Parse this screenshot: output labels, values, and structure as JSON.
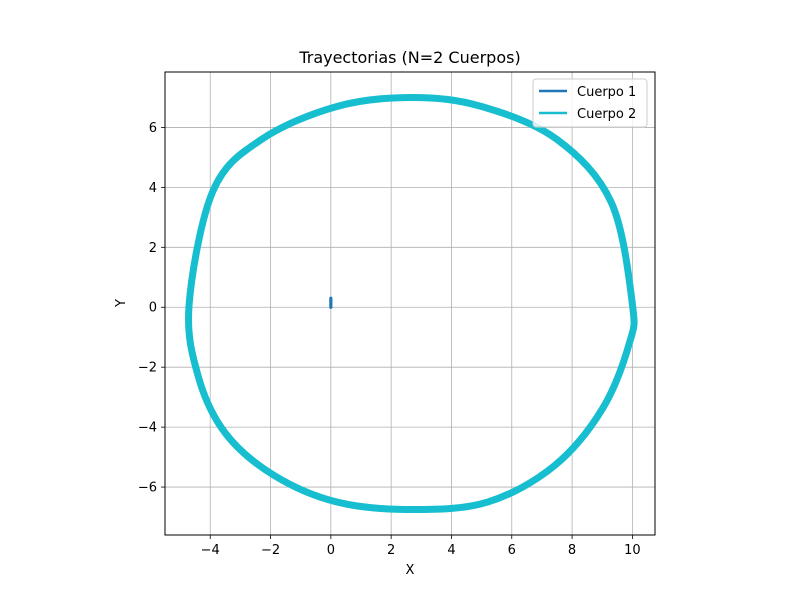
{
  "chart_data": {
    "type": "line",
    "title": "Trayectorias (N=2 Cuerpos)",
    "xlabel": "X",
    "ylabel": "Y",
    "xlim": [
      -5.5,
      10.75
    ],
    "ylim": [
      -7.6,
      7.85
    ],
    "xticks": [
      -4,
      -2,
      0,
      2,
      4,
      6,
      8,
      10
    ],
    "yticks": [
      -6,
      -4,
      -2,
      0,
      2,
      4,
      6
    ],
    "xtick_labels": [
      "−4",
      "−2",
      "0",
      "2",
      "4",
      "6",
      "8",
      "10"
    ],
    "ytick_labels": [
      "−6",
      "−4",
      "−2",
      "0",
      "2",
      "4",
      "6"
    ],
    "grid": true,
    "legend_position": "top-right",
    "series": [
      {
        "name": "Cuerpo 1",
        "color": "#1f77b4",
        "x": [
          0.0,
          0.0,
          0.0,
          0.0,
          0.0
        ],
        "y": [
          0.0,
          0.08,
          0.15,
          0.22,
          0.3
        ]
      },
      {
        "name": "Cuerpo 2",
        "color": "#17becf",
        "x": [
          10.0,
          9.3,
          7.5,
          5.0,
          2.7,
          0.2,
          -2.3,
          -3.9,
          -4.7,
          -4.4,
          -3.5,
          -1.9,
          0.2,
          2.7,
          5.2,
          7.4,
          9.0,
          9.9,
          10.0
        ],
        "y": [
          0.1,
          3.5,
          5.6,
          6.7,
          7.0,
          6.7,
          5.6,
          3.9,
          0.1,
          -2.3,
          -4.2,
          -5.6,
          -6.5,
          -6.75,
          -6.5,
          -5.3,
          -3.4,
          -1.2,
          0.1
        ]
      }
    ]
  }
}
